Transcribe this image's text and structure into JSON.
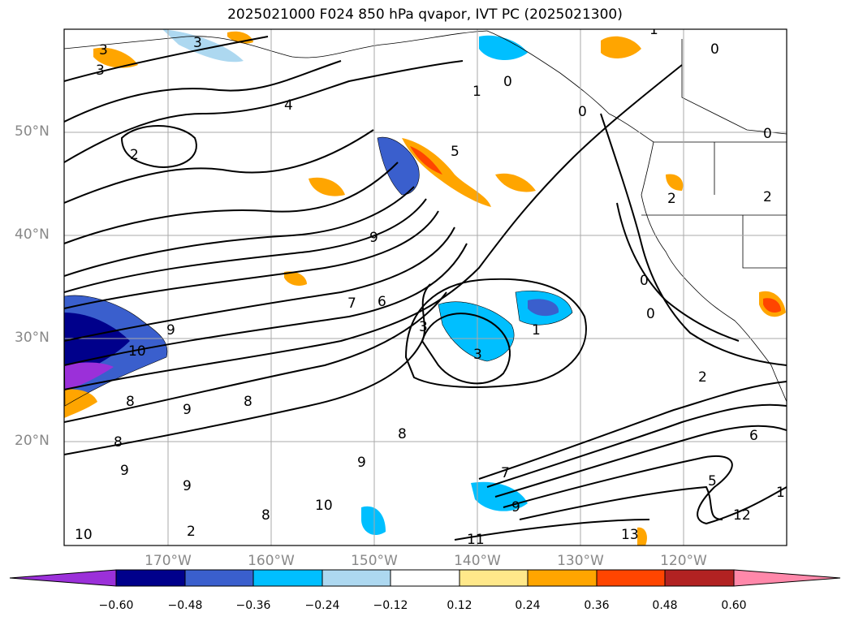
{
  "title": "2025021000 F024 850 hPa qvapor, IVT PC (2025021300)",
  "lat_labels": [
    "50°N",
    "40°N",
    "30°N",
    "20°N"
  ],
  "lon_labels": [
    "170°W",
    "160°W",
    "150°W",
    "140°W",
    "130°W",
    "120°W"
  ],
  "colorbar": {
    "ticks": [
      "−0.60",
      "−0.48",
      "−0.36",
      "−0.24",
      "−0.12",
      "0.12",
      "0.24",
      "0.36",
      "0.48",
      "0.60"
    ],
    "colors": [
      "#9b30d9",
      "#00008b",
      "#3a5fcd",
      "#00bfff",
      "#add8f0",
      "#ffffff",
      "#ffe88a",
      "#ffa500",
      "#ff4500",
      "#b22222",
      "#ff88aa"
    ]
  },
  "contour_labels": [
    "3",
    "3",
    "3",
    "4",
    "2",
    "1",
    "0",
    "0",
    "0",
    "5",
    "1",
    "2",
    "2",
    "0",
    "0",
    "9",
    "7",
    "6",
    "3",
    "3",
    "1",
    "2",
    "10",
    "8",
    "9",
    "9",
    "8",
    "8",
    "9",
    "9",
    "8",
    "8",
    "9",
    "9",
    "10",
    "10",
    "7",
    "11",
    "13",
    "12",
    "6",
    "5",
    "1",
    "2",
    "0"
  ]
}
